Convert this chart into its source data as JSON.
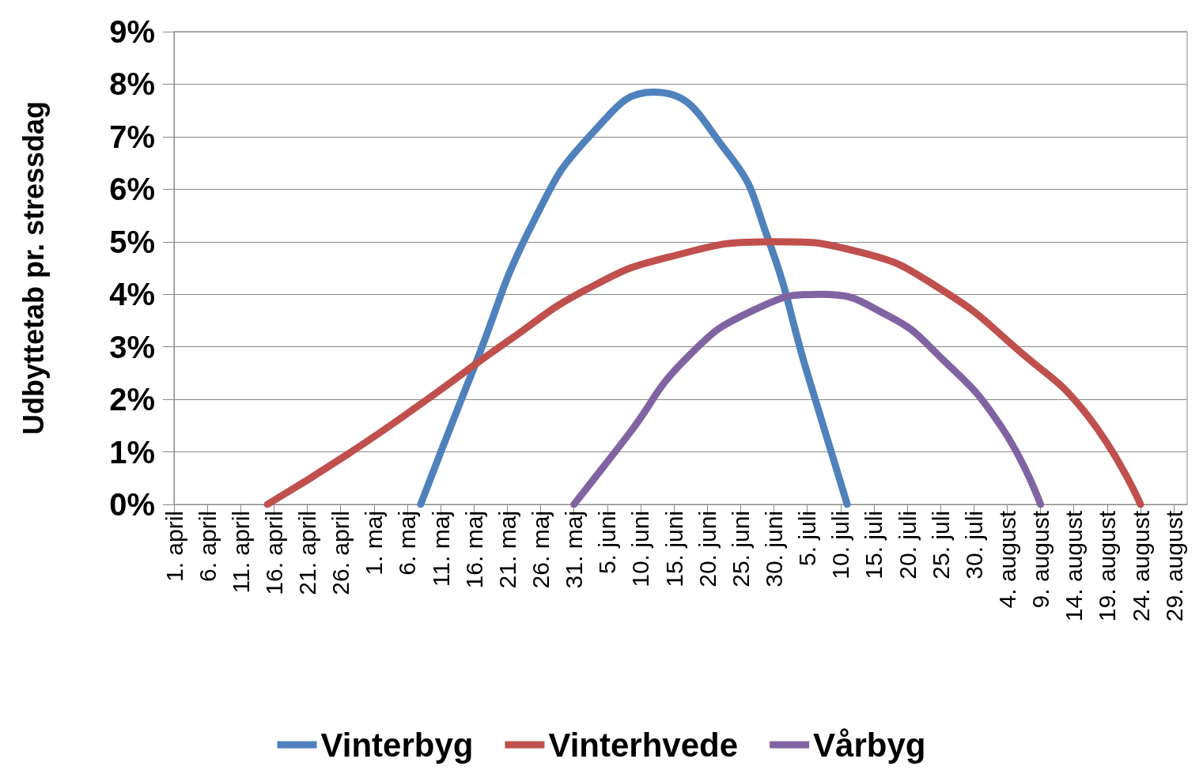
{
  "chart_data": {
    "type": "line",
    "ylabel": "Udbyttetab pr. stressdag",
    "xlim": [
      "--04-01",
      "--08-31"
    ],
    "xticks": [
      {
        "value": "--04-01",
        "label": "1. april"
      },
      {
        "value": "--04-06",
        "label": "6. april"
      },
      {
        "value": "--04-11",
        "label": "11. april"
      },
      {
        "value": "--04-16",
        "label": "16. april"
      },
      {
        "value": "--04-21",
        "label": "21. april"
      },
      {
        "value": "--04-26",
        "label": "26. april"
      },
      {
        "value": "--05-01",
        "label": "1. maj"
      },
      {
        "value": "--05-06",
        "label": "6. maj"
      },
      {
        "value": "--05-11",
        "label": "11. maj"
      },
      {
        "value": "--05-16",
        "label": "16. maj"
      },
      {
        "value": "--05-21",
        "label": "21. maj"
      },
      {
        "value": "--05-26",
        "label": "26. maj"
      },
      {
        "value": "--05-31",
        "label": "31. maj"
      },
      {
        "value": "--06-05",
        "label": "5. juni"
      },
      {
        "value": "--06-10",
        "label": "10. juni"
      },
      {
        "value": "--06-15",
        "label": "15. juni"
      },
      {
        "value": "--06-20",
        "label": "20. juni"
      },
      {
        "value": "--06-25",
        "label": "25. juni"
      },
      {
        "value": "--06-30",
        "label": "30. juni"
      },
      {
        "value": "--07-05",
        "label": "5. juli"
      },
      {
        "value": "--07-10",
        "label": "10. juli"
      },
      {
        "value": "--07-15",
        "label": "15. juli"
      },
      {
        "value": "--07-20",
        "label": "20. juli"
      },
      {
        "value": "--07-25",
        "label": "25. juli"
      },
      {
        "value": "--07-30",
        "label": "30. juli"
      },
      {
        "value": "--08-04",
        "label": "4. august"
      },
      {
        "value": "--08-09",
        "label": "9. august"
      },
      {
        "value": "--08-14",
        "label": "14. august"
      },
      {
        "value": "--08-19",
        "label": "19. august"
      },
      {
        "value": "--08-24",
        "label": "24. august"
      },
      {
        "value": "--08-29",
        "label": "29. august"
      }
    ],
    "ylim": [
      0,
      9
    ],
    "yticks": [
      {
        "value": 0,
        "label": "0%"
      },
      {
        "value": 1,
        "label": "1%"
      },
      {
        "value": 2,
        "label": "2%"
      },
      {
        "value": 3,
        "label": "3%"
      },
      {
        "value": 4,
        "label": "4%"
      },
      {
        "value": 5,
        "label": "5%"
      },
      {
        "value": 6,
        "label": "6%"
      },
      {
        "value": 7,
        "label": "7%"
      },
      {
        "value": 8,
        "label": "8%"
      },
      {
        "value": 9,
        "label": "9%"
      }
    ],
    "grid": "y",
    "legend": "bottom",
    "marker": "none",
    "line_style": "solid",
    "series": [
      {
        "name": "Vinterbyg",
        "color": "#4f81bd",
        "x": [
          "--05-08",
          "--05-16",
          "--05-25",
          "--06-03",
          "--06-12",
          "--06-23",
          "--06-29",
          "--07-05",
          "--07-11"
        ],
        "values": [
          0,
          2.6,
          5.4,
          7.1,
          7.85,
          6.7,
          5.1,
          2.5,
          0
        ]
      },
      {
        "name": "Vinterhvede",
        "color": "#c0504d",
        "x": [
          "--04-15",
          "--04-27",
          "--05-09",
          "--05-21",
          "--06-02",
          "--06-14",
          "--06-30",
          "--07-13",
          "--07-25",
          "--08-06",
          "--08-16",
          "--08-24"
        ],
        "values": [
          0,
          0.95,
          2.0,
          3.1,
          4.1,
          4.7,
          5.0,
          4.8,
          4.1,
          2.9,
          1.7,
          0
        ]
      },
      {
        "name": "Vårbyg",
        "color": "#8064a2",
        "x": [
          "--05-31",
          "--06-08",
          "--06-17",
          "--06-27",
          "--07-07",
          "--07-17",
          "--07-25",
          "--08-03",
          "--08-09"
        ],
        "values": [
          0,
          1.3,
          2.8,
          3.7,
          4.0,
          3.6,
          2.8,
          1.5,
          0
        ]
      }
    ]
  }
}
